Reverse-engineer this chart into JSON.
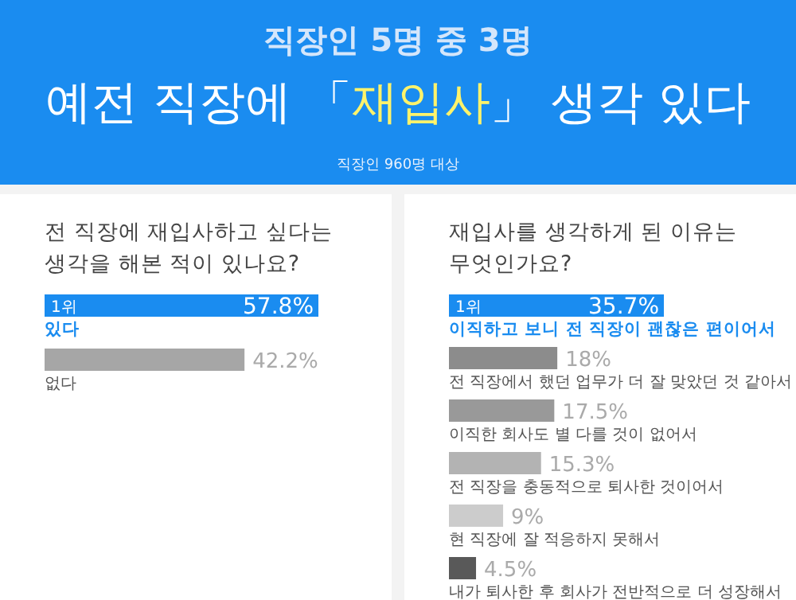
{
  "chart_data": [
    {
      "type": "bar",
      "orientation": "horizontal",
      "title": "전 직장에 재입사하고 싶다는 생각을 해본 적이 있나요?",
      "categories": [
        "있다",
        "없다"
      ],
      "values": [
        57.8,
        42.2
      ],
      "colors": [
        "#1a8cf0",
        "#a6a6a6"
      ],
      "value_labels": [
        "57.8%",
        "42.2%"
      ],
      "annotations": [
        "직장인 5명 중 3명",
        "예전 직장에 「재입사」 생각 있다",
        "직장인 960명 대상",
        "1위"
      ]
    },
    {
      "type": "bar",
      "orientation": "horizontal",
      "title": "재입사를 생각하게 된 이유는 무엇인가요?",
      "categories": [
        "이직하고 보니 전 직장이 괜찮은 편이어서",
        "전 직장에서 했던 업무가 더 잘 맞았던 것 같아서",
        "이직한 회사도 별 다를 것이 없어서",
        "전 직장을 충동적으로 퇴사한 것이어서",
        "현 직장에 잘 적응하지 못해서",
        "내가 퇴사한 후 회사가 전반적으로 더 성장해서"
      ],
      "values": [
        35.7,
        18,
        17.5,
        15.3,
        9,
        4.5
      ],
      "colors": [
        "#1a8cf0",
        "#8c8c8c",
        "#999999",
        "#b3b3b3",
        "#cccccc",
        "#595959"
      ],
      "value_labels": [
        "35.7%",
        "18%",
        "17.5%",
        "15.3%",
        "9%",
        "4.5%"
      ],
      "annotations": [
        "1위"
      ]
    }
  ]
}
